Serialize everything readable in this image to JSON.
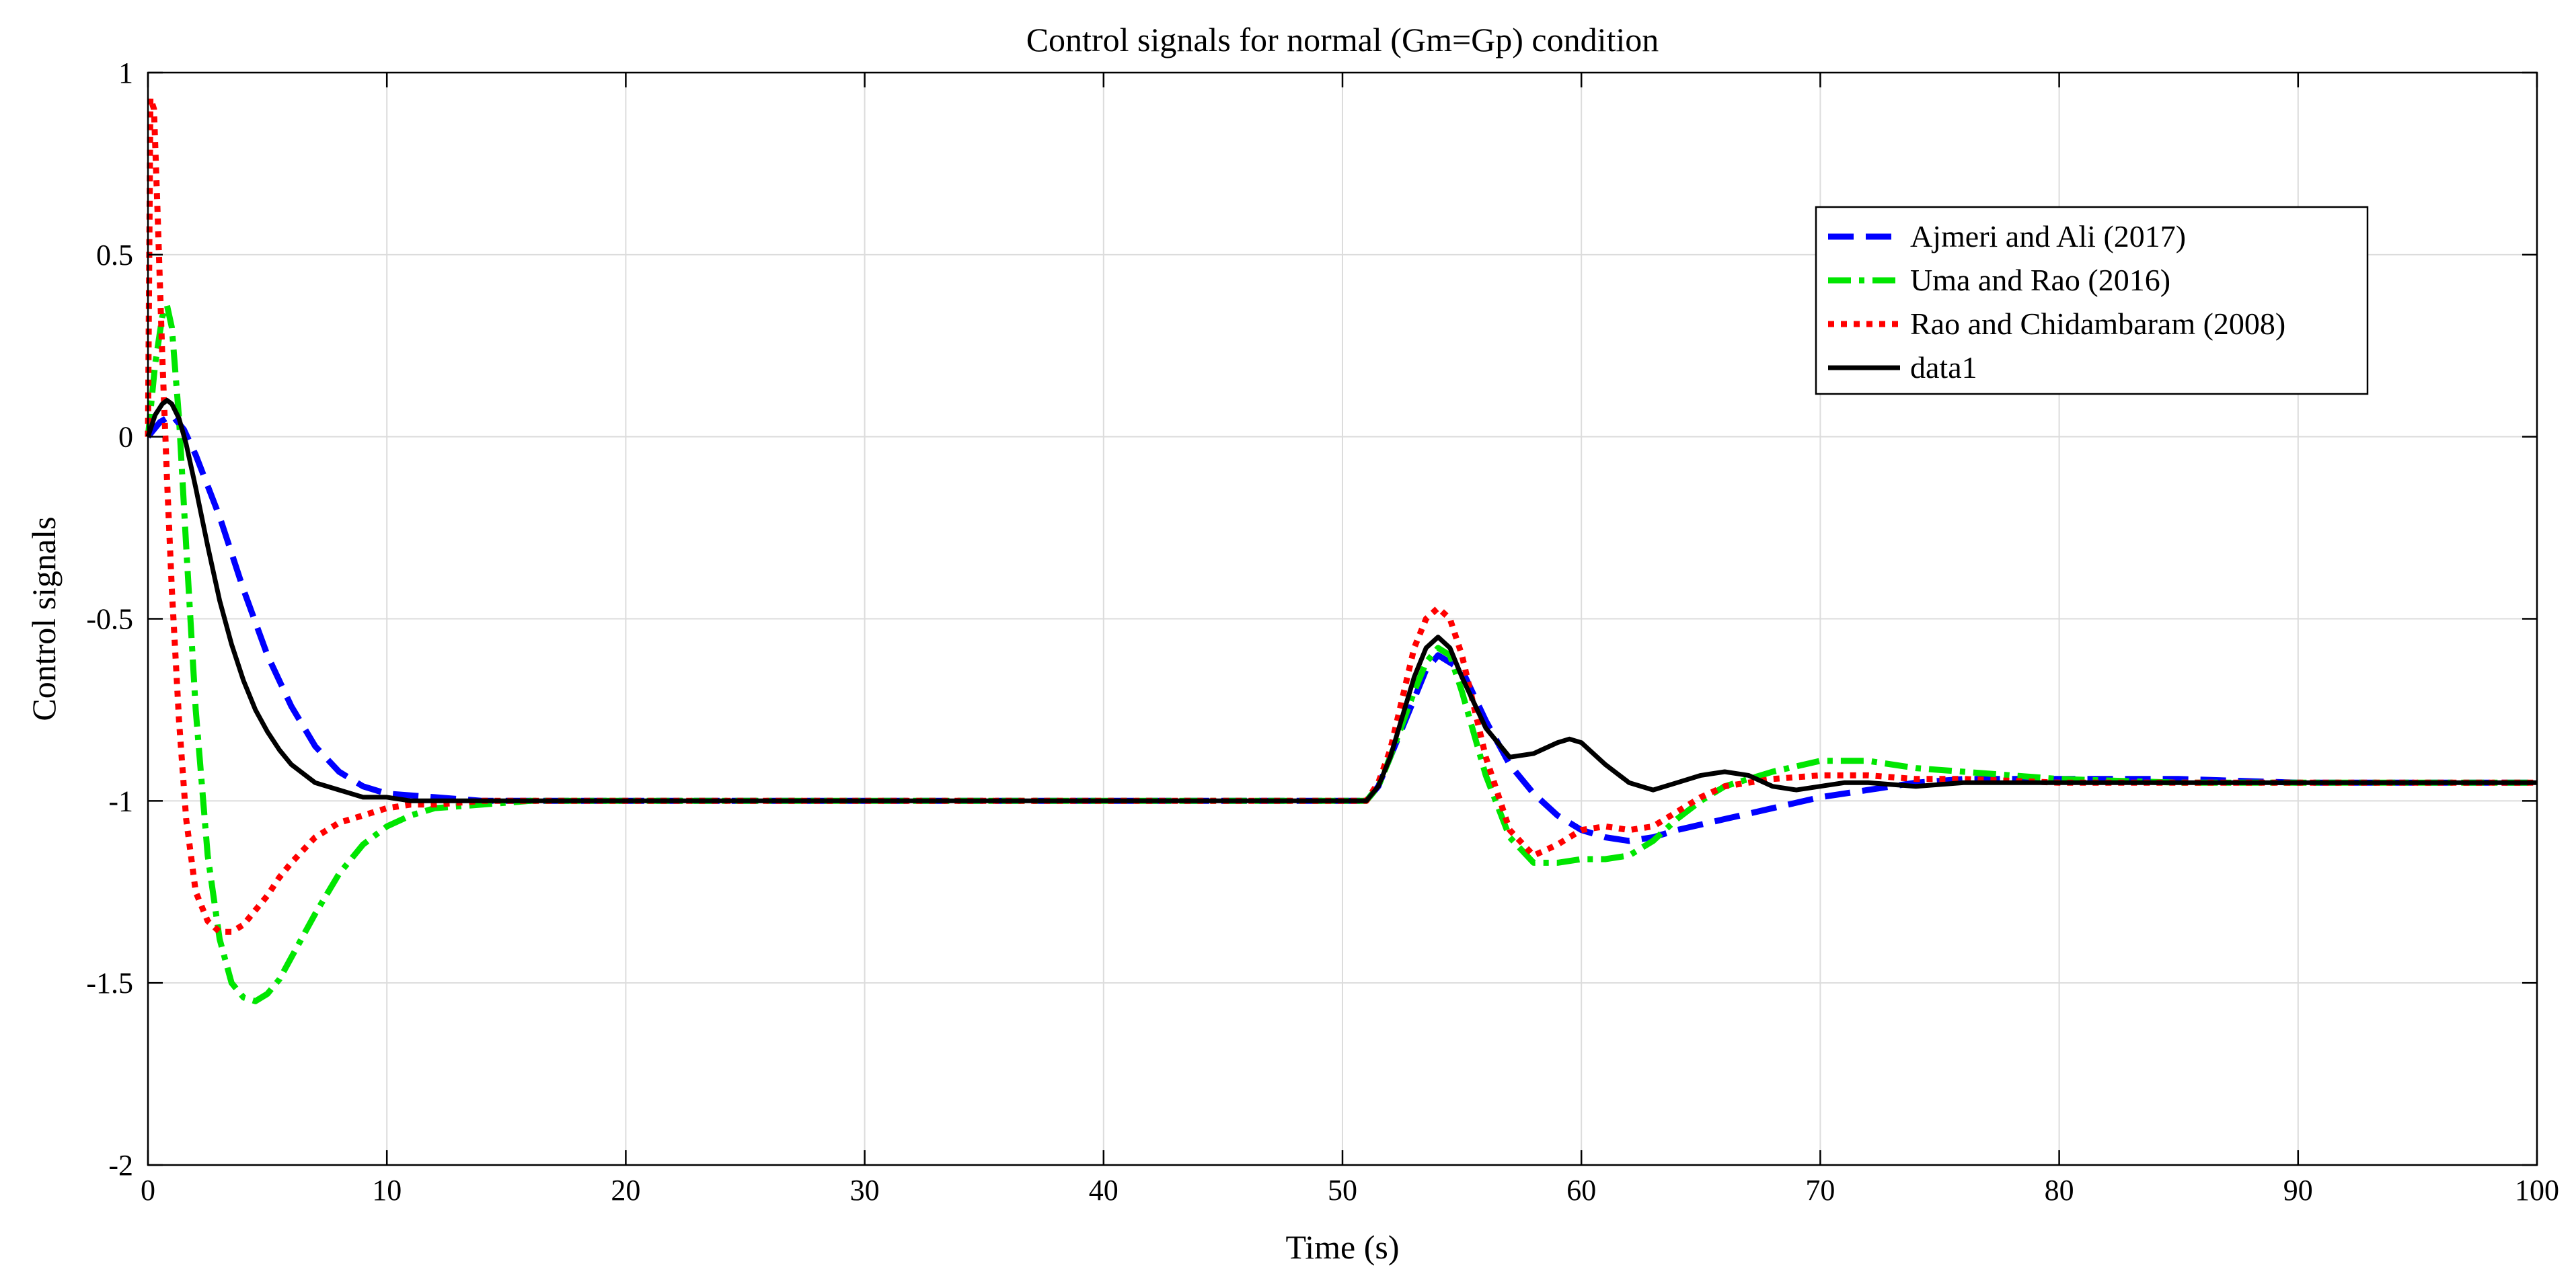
{
  "chart_data": {
    "type": "line",
    "title": "Control signals for normal (Gm=Gp) condition",
    "xlabel": "Time (s)",
    "ylabel": "Control signals",
    "xlim": [
      0,
      100
    ],
    "ylim": [
      -2,
      1
    ],
    "xticks": [
      0,
      10,
      20,
      30,
      40,
      50,
      60,
      70,
      80,
      90,
      100
    ],
    "yticks": [
      -2,
      -1.5,
      -1,
      -0.5,
      0,
      0.5,
      1
    ],
    "grid": true,
    "legend_position": "top-right",
    "series": [
      {
        "name": "Ajmeri and Ali (2017)",
        "color": "#0000ff",
        "style": "dashed",
        "x": [
          0,
          0.5,
          1,
          1.5,
          2,
          3,
          4,
          5,
          6,
          7,
          8,
          9,
          10,
          12,
          14,
          16,
          20,
          30,
          40,
          51,
          51.5,
          52,
          53,
          53.5,
          54,
          55,
          56,
          57,
          58,
          59,
          60,
          61,
          62,
          63,
          64,
          66,
          68,
          70,
          72,
          74,
          76,
          80,
          85,
          90,
          95,
          100
        ],
        "y": [
          0,
          0.04,
          0.06,
          0.02,
          -0.05,
          -0.22,
          -0.42,
          -0.6,
          -0.74,
          -0.85,
          -0.92,
          -0.96,
          -0.98,
          -0.99,
          -1.0,
          -1.0,
          -1.0,
          -1.0,
          -1.0,
          -1.0,
          -0.96,
          -0.88,
          -0.72,
          -0.64,
          -0.6,
          -0.64,
          -0.78,
          -0.9,
          -0.98,
          -1.04,
          -1.08,
          -1.1,
          -1.11,
          -1.1,
          -1.08,
          -1.05,
          -1.02,
          -0.99,
          -0.97,
          -0.95,
          -0.94,
          -0.94,
          -0.94,
          -0.95,
          -0.95,
          -0.95
        ]
      },
      {
        "name": "Uma and Rao (2016)",
        "color": "#00e600",
        "style": "dashdot",
        "x": [
          0,
          0.3,
          0.6,
          0.8,
          1,
          1.3,
          1.6,
          2,
          2.5,
          3,
          3.5,
          4,
          4.5,
          5,
          5.5,
          6,
          7,
          8,
          9,
          10,
          11,
          12,
          14,
          16,
          18,
          20,
          30,
          40,
          51,
          51.5,
          52,
          53,
          53.5,
          54,
          54.5,
          55,
          56,
          57,
          58,
          59,
          60,
          61,
          62,
          63,
          64,
          65,
          66,
          68,
          70,
          72,
          74,
          76,
          80,
          85,
          90,
          95,
          100
        ],
        "y": [
          0,
          0.2,
          0.33,
          0.36,
          0.3,
          0.05,
          -0.3,
          -0.75,
          -1.15,
          -1.38,
          -1.5,
          -1.54,
          -1.55,
          -1.53,
          -1.49,
          -1.43,
          -1.31,
          -1.2,
          -1.12,
          -1.07,
          -1.04,
          -1.02,
          -1.01,
          -1.0,
          -1.0,
          -1.0,
          -1.0,
          -1.0,
          -1.0,
          -0.96,
          -0.88,
          -0.7,
          -0.62,
          -0.58,
          -0.6,
          -0.7,
          -0.93,
          -1.1,
          -1.17,
          -1.17,
          -1.16,
          -1.16,
          -1.15,
          -1.11,
          -1.05,
          -1.0,
          -0.96,
          -0.92,
          -0.89,
          -0.89,
          -0.91,
          -0.92,
          -0.94,
          -0.95,
          -0.95,
          -0.95,
          -0.95
        ]
      },
      {
        "name": "Rao and Chidambaram (2008)",
        "color": "#ff0000",
        "style": "dotted",
        "x": [
          0,
          0.1,
          0.25,
          0.4,
          0.6,
          0.8,
          1,
          1.3,
          1.6,
          2,
          2.5,
          3,
          3.5,
          4,
          4.5,
          5,
          5.5,
          6,
          7,
          8,
          9,
          10,
          11,
          12,
          14,
          16,
          18,
          20,
          30,
          40,
          51,
          51.5,
          52,
          52.5,
          53,
          53.5,
          54,
          54.5,
          55,
          56,
          57,
          58,
          59,
          60,
          61,
          62,
          63,
          64,
          65,
          66,
          68,
          70,
          72,
          74,
          76,
          80,
          85,
          90,
          95,
          100
        ],
        "y": [
          0,
          0.93,
          0.9,
          0.62,
          0.22,
          -0.12,
          -0.42,
          -0.78,
          -1.05,
          -1.25,
          -1.33,
          -1.36,
          -1.36,
          -1.34,
          -1.3,
          -1.26,
          -1.21,
          -1.17,
          -1.1,
          -1.06,
          -1.04,
          -1.02,
          -1.01,
          -1.01,
          -1.0,
          -1.0,
          -1.0,
          -1.0,
          -1.0,
          -1.0,
          -1.0,
          -0.95,
          -0.86,
          -0.72,
          -0.58,
          -0.5,
          -0.47,
          -0.5,
          -0.6,
          -0.88,
          -1.08,
          -1.15,
          -1.12,
          -1.08,
          -1.07,
          -1.08,
          -1.07,
          -1.03,
          -0.99,
          -0.96,
          -0.94,
          -0.93,
          -0.93,
          -0.94,
          -0.94,
          -0.95,
          -0.95,
          -0.95,
          -0.95,
          -0.95
        ]
      },
      {
        "name": "data1",
        "color": "#000000",
        "style": "solid",
        "x": [
          0,
          0.3,
          0.6,
          0.8,
          1,
          1.3,
          1.6,
          2,
          2.5,
          3,
          3.5,
          4,
          4.5,
          5,
          5.5,
          6,
          7,
          8,
          9,
          10,
          11,
          12,
          14,
          16,
          20,
          30,
          40,
          51,
          51.5,
          52,
          53,
          53.5,
          54,
          54.5,
          55,
          56,
          57,
          58,
          59,
          59.5,
          60,
          61,
          62,
          63,
          64,
          65,
          66,
          67,
          68,
          69,
          70,
          71,
          72,
          74,
          76,
          80,
          85,
          90,
          95,
          100
        ],
        "y": [
          0,
          0.06,
          0.09,
          0.1,
          0.09,
          0.05,
          -0.02,
          -0.14,
          -0.3,
          -0.45,
          -0.57,
          -0.67,
          -0.75,
          -0.81,
          -0.86,
          -0.9,
          -0.95,
          -0.97,
          -0.99,
          -0.99,
          -1.0,
          -1.0,
          -1.0,
          -1.0,
          -1.0,
          -1.0,
          -1.0,
          -1.0,
          -0.96,
          -0.88,
          -0.66,
          -0.58,
          -0.55,
          -0.58,
          -0.66,
          -0.8,
          -0.88,
          -0.87,
          -0.84,
          -0.83,
          -0.84,
          -0.9,
          -0.95,
          -0.97,
          -0.95,
          -0.93,
          -0.92,
          -0.93,
          -0.96,
          -0.97,
          -0.96,
          -0.95,
          -0.95,
          -0.96,
          -0.95,
          -0.95,
          -0.95,
          -0.95,
          -0.95,
          -0.95
        ]
      }
    ]
  }
}
